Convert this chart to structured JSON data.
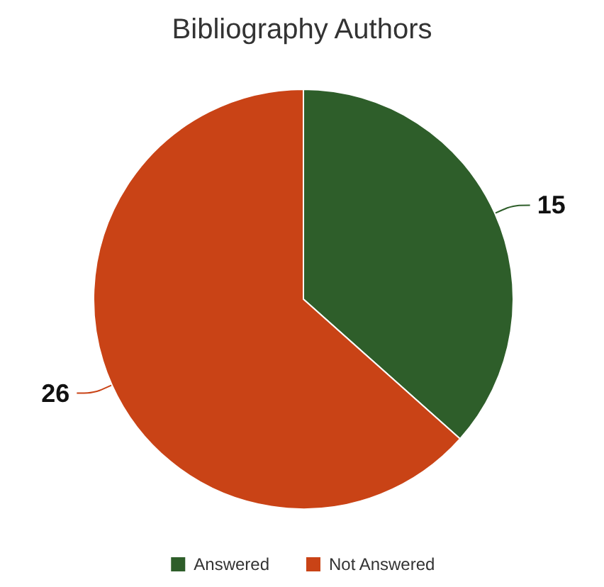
{
  "chart_data": {
    "type": "pie",
    "title": "Bibliography Authors",
    "categories": [
      "Answered",
      "Not Answered"
    ],
    "values": [
      15,
      26
    ],
    "colors": [
      "#2e5e2a",
      "#c94316"
    ],
    "data_labels": true,
    "legend": "bottom"
  }
}
